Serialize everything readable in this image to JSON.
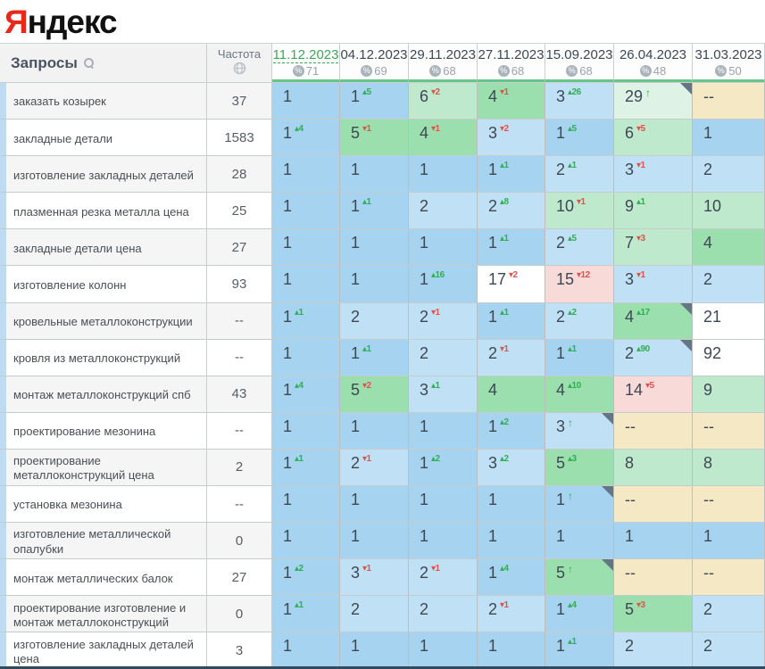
{
  "logo": {
    "first_letter": "Я",
    "rest": "ндекс"
  },
  "palette": {
    "blue1": "#a6d3f0",
    "blue2": "#c0e0f5",
    "g45": "#9cdfae",
    "g610": "#bfe9cc",
    "pale": "#def2e5",
    "pink": "#f8dbd8",
    "tan": "#f5e8c5",
    "white": "#ffffff",
    "up_color": "#2fae53",
    "down_color": "#e0524e",
    "selected_date_color": "#3da85a"
  },
  "table": {
    "query_header": "Запросы",
    "freq_header": "Частота",
    "search_icon": "search-icon",
    "freq_icon": "globe-icon",
    "date_columns": [
      {
        "date": "11.12.2023",
        "coverage": "71",
        "selected": true
      },
      {
        "date": "04.12.2023",
        "coverage": "69",
        "selected": false
      },
      {
        "date": "29.11.2023",
        "coverage": "68",
        "selected": false
      },
      {
        "date": "27.11.2023",
        "coverage": "68",
        "selected": false
      },
      {
        "date": "15.09.2023",
        "coverage": "68",
        "selected": false
      },
      {
        "date": "26.04.2023",
        "coverage": "48",
        "selected": false
      },
      {
        "date": "31.03.2023",
        "coverage": "50",
        "selected": false
      }
    ],
    "rows": [
      {
        "query": "заказать козырек",
        "freq": "37",
        "cells": [
          {
            "v": "1",
            "bg": "blue1"
          },
          {
            "v": "1",
            "d": "5",
            "dir": "up",
            "bg": "blue1"
          },
          {
            "v": "6",
            "d": "2",
            "dir": "down",
            "bg": "g610"
          },
          {
            "v": "4",
            "d": "1",
            "dir": "down",
            "bg": "g45"
          },
          {
            "v": "3",
            "d": "26",
            "dir": "up",
            "bg": "blue2"
          },
          {
            "v": "29",
            "dir": "in",
            "bg": "pale",
            "corner": true
          },
          {
            "v": "--",
            "bg": "tan"
          }
        ]
      },
      {
        "query": "закладные детали",
        "freq": "1583",
        "cells": [
          {
            "v": "1",
            "d": "4",
            "dir": "up",
            "bg": "blue1"
          },
          {
            "v": "5",
            "d": "1",
            "dir": "down",
            "bg": "g45"
          },
          {
            "v": "4",
            "d": "1",
            "dir": "down",
            "bg": "g45"
          },
          {
            "v": "3",
            "d": "2",
            "dir": "down",
            "bg": "blue2"
          },
          {
            "v": "1",
            "d": "5",
            "dir": "up",
            "bg": "blue1"
          },
          {
            "v": "6",
            "d": "5",
            "dir": "down",
            "bg": "g610"
          },
          {
            "v": "1",
            "bg": "blue1"
          }
        ]
      },
      {
        "query": "изготовление закладных деталей",
        "freq": "28",
        "cells": [
          {
            "v": "1",
            "bg": "blue1"
          },
          {
            "v": "1",
            "bg": "blue1"
          },
          {
            "v": "1",
            "bg": "blue1"
          },
          {
            "v": "1",
            "d": "1",
            "dir": "up",
            "bg": "blue1"
          },
          {
            "v": "2",
            "d": "1",
            "dir": "up",
            "bg": "blue2"
          },
          {
            "v": "3",
            "d": "1",
            "dir": "down",
            "bg": "blue2"
          },
          {
            "v": "2",
            "bg": "blue2"
          }
        ]
      },
      {
        "query": "плазменная резка металла цена",
        "freq": "25",
        "cells": [
          {
            "v": "1",
            "bg": "blue1"
          },
          {
            "v": "1",
            "d": "1",
            "dir": "up",
            "bg": "blue1"
          },
          {
            "v": "2",
            "bg": "blue2"
          },
          {
            "v": "2",
            "d": "8",
            "dir": "up",
            "bg": "blue2"
          },
          {
            "v": "10",
            "d": "1",
            "dir": "down",
            "bg": "g610"
          },
          {
            "v": "9",
            "d": "1",
            "dir": "up",
            "bg": "g610"
          },
          {
            "v": "10",
            "bg": "g610"
          }
        ]
      },
      {
        "query": "закладные детали цена",
        "freq": "27",
        "cells": [
          {
            "v": "1",
            "bg": "blue1"
          },
          {
            "v": "1",
            "bg": "blue1"
          },
          {
            "v": "1",
            "bg": "blue1"
          },
          {
            "v": "1",
            "d": "1",
            "dir": "up",
            "bg": "blue1"
          },
          {
            "v": "2",
            "d": "5",
            "dir": "up",
            "bg": "blue2"
          },
          {
            "v": "7",
            "d": "3",
            "dir": "down",
            "bg": "g610"
          },
          {
            "v": "4",
            "bg": "g45"
          }
        ]
      },
      {
        "query": "изготовление колонн",
        "freq": "93",
        "cells": [
          {
            "v": "1",
            "bg": "blue1"
          },
          {
            "v": "1",
            "bg": "blue1"
          },
          {
            "v": "1",
            "d": "16",
            "dir": "up",
            "bg": "blue1"
          },
          {
            "v": "17",
            "d": "2",
            "dir": "down",
            "bg": "white"
          },
          {
            "v": "15",
            "d": "12",
            "dir": "down",
            "bg": "pink"
          },
          {
            "v": "3",
            "d": "1",
            "dir": "down",
            "bg": "blue2"
          },
          {
            "v": "2",
            "bg": "blue2"
          }
        ]
      },
      {
        "query": "кровельные металлоконструкции",
        "freq": "--",
        "cells": [
          {
            "v": "1",
            "d": "1",
            "dir": "up",
            "bg": "blue1"
          },
          {
            "v": "2",
            "bg": "blue2"
          },
          {
            "v": "2",
            "d": "1",
            "dir": "down",
            "bg": "blue2"
          },
          {
            "v": "1",
            "d": "1",
            "dir": "up",
            "bg": "blue1"
          },
          {
            "v": "2",
            "d": "2",
            "dir": "up",
            "bg": "blue2"
          },
          {
            "v": "4",
            "d": "17",
            "dir": "up",
            "bg": "g45",
            "corner": true
          },
          {
            "v": "21",
            "bg": "white"
          }
        ]
      },
      {
        "query": "кровля из металлоконструкций",
        "freq": "--",
        "cells": [
          {
            "v": "1",
            "bg": "blue1"
          },
          {
            "v": "1",
            "d": "1",
            "dir": "up",
            "bg": "blue1"
          },
          {
            "v": "2",
            "bg": "blue2"
          },
          {
            "v": "2",
            "d": "1",
            "dir": "down",
            "bg": "blue2"
          },
          {
            "v": "1",
            "d": "1",
            "dir": "up",
            "bg": "blue1"
          },
          {
            "v": "2",
            "d": "90",
            "dir": "up",
            "bg": "blue2",
            "corner": true
          },
          {
            "v": "92",
            "bg": "white"
          }
        ]
      },
      {
        "query": "монтаж металлоконструкций спб",
        "freq": "43",
        "cells": [
          {
            "v": "1",
            "d": "4",
            "dir": "up",
            "bg": "blue1"
          },
          {
            "v": "5",
            "d": "2",
            "dir": "down",
            "bg": "g45"
          },
          {
            "v": "3",
            "d": "1",
            "dir": "up",
            "bg": "blue2"
          },
          {
            "v": "4",
            "bg": "g45"
          },
          {
            "v": "4",
            "d": "10",
            "dir": "up",
            "bg": "g45"
          },
          {
            "v": "14",
            "d": "5",
            "dir": "down",
            "bg": "pink"
          },
          {
            "v": "9",
            "bg": "g610"
          }
        ]
      },
      {
        "query": "проектирование мезонина",
        "freq": "--",
        "cells": [
          {
            "v": "1",
            "bg": "blue1"
          },
          {
            "v": "1",
            "bg": "blue1"
          },
          {
            "v": "1",
            "bg": "blue1"
          },
          {
            "v": "1",
            "d": "2",
            "dir": "up",
            "bg": "blue1"
          },
          {
            "v": "3",
            "dir": "in",
            "bg": "blue2",
            "corner": true
          },
          {
            "v": "--",
            "bg": "tan"
          },
          {
            "v": "--",
            "bg": "tan"
          }
        ]
      },
      {
        "query": "проектирование металлоконструкций цена",
        "freq": "2",
        "cells": [
          {
            "v": "1",
            "d": "1",
            "dir": "up",
            "bg": "blue1"
          },
          {
            "v": "2",
            "d": "1",
            "dir": "down",
            "bg": "blue2"
          },
          {
            "v": "1",
            "d": "2",
            "dir": "up",
            "bg": "blue1"
          },
          {
            "v": "3",
            "d": "2",
            "dir": "up",
            "bg": "blue2"
          },
          {
            "v": "5",
            "d": "3",
            "dir": "up",
            "bg": "g45"
          },
          {
            "v": "8",
            "bg": "g610"
          },
          {
            "v": "8",
            "bg": "g610"
          }
        ]
      },
      {
        "query": "установка мезонина",
        "freq": "--",
        "cells": [
          {
            "v": "1",
            "bg": "blue1"
          },
          {
            "v": "1",
            "bg": "blue1"
          },
          {
            "v": "1",
            "bg": "blue1"
          },
          {
            "v": "1",
            "bg": "blue1"
          },
          {
            "v": "1",
            "dir": "in",
            "bg": "blue1",
            "corner": true
          },
          {
            "v": "--",
            "bg": "tan"
          },
          {
            "v": "--",
            "bg": "tan"
          }
        ]
      },
      {
        "query": "изготовление металлической опалубки",
        "freq": "0",
        "cells": [
          {
            "v": "1",
            "bg": "blue1"
          },
          {
            "v": "1",
            "bg": "blue1"
          },
          {
            "v": "1",
            "bg": "blue1"
          },
          {
            "v": "1",
            "bg": "blue1"
          },
          {
            "v": "1",
            "bg": "blue1"
          },
          {
            "v": "1",
            "bg": "blue1"
          },
          {
            "v": "1",
            "bg": "blue1"
          }
        ]
      },
      {
        "query": "монтаж металлических балок",
        "freq": "27",
        "cells": [
          {
            "v": "1",
            "d": "2",
            "dir": "up",
            "bg": "blue1"
          },
          {
            "v": "3",
            "d": "1",
            "dir": "down",
            "bg": "blue2"
          },
          {
            "v": "2",
            "d": "1",
            "dir": "down",
            "bg": "blue2"
          },
          {
            "v": "1",
            "d": "4",
            "dir": "up",
            "bg": "blue1"
          },
          {
            "v": "5",
            "dir": "in",
            "bg": "g45",
            "corner": true
          },
          {
            "v": "--",
            "bg": "tan"
          },
          {
            "v": "--",
            "bg": "tan"
          }
        ]
      },
      {
        "query": "проектирование изготовление и монтаж металлоконструкций",
        "freq": "0",
        "cells": [
          {
            "v": "1",
            "d": "1",
            "dir": "up",
            "bg": "blue1"
          },
          {
            "v": "2",
            "bg": "blue2"
          },
          {
            "v": "2",
            "bg": "blue2"
          },
          {
            "v": "2",
            "d": "1",
            "dir": "down",
            "bg": "blue2"
          },
          {
            "v": "1",
            "d": "4",
            "dir": "up",
            "bg": "blue1"
          },
          {
            "v": "5",
            "d": "3",
            "dir": "down",
            "bg": "g45"
          },
          {
            "v": "2",
            "bg": "blue2"
          }
        ]
      },
      {
        "query": "изготовление закладных деталей цена",
        "freq": "3",
        "cells": [
          {
            "v": "1",
            "bg": "blue1"
          },
          {
            "v": "1",
            "bg": "blue1"
          },
          {
            "v": "1",
            "bg": "blue1"
          },
          {
            "v": "1",
            "bg": "blue1"
          },
          {
            "v": "1",
            "d": "1",
            "dir": "up",
            "bg": "blue1"
          },
          {
            "v": "2",
            "bg": "blue2"
          },
          {
            "v": "2",
            "bg": "blue2"
          }
        ]
      }
    ]
  }
}
